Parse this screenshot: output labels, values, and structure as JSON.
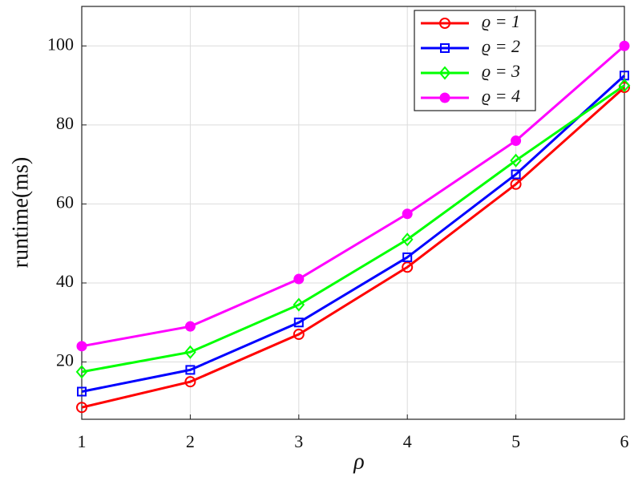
{
  "chart_data": {
    "type": "line",
    "x_label": "ρ",
    "y_label": "runtime(ms)",
    "x": [
      1,
      2,
      3,
      4,
      5,
      6
    ],
    "xlim": [
      1,
      6
    ],
    "xticks": [
      1,
      2,
      3,
      4,
      5,
      6
    ],
    "ylim": [
      5.5,
      110
    ],
    "yticks": [
      20,
      40,
      60,
      80,
      100
    ],
    "grid": true,
    "legend": "upper right",
    "series": [
      {
        "name": "ϱ = 1",
        "color": "#ff0000",
        "marker": "circle",
        "values": [
          8.5,
          15,
          27,
          44,
          65,
          89.5
        ]
      },
      {
        "name": "ϱ = 2",
        "color": "#0000ff",
        "marker": "square",
        "values": [
          12.5,
          18,
          30,
          46.5,
          67.5,
          92.5
        ]
      },
      {
        "name": "ϱ = 3",
        "color": "#00ff00",
        "marker": "diamond",
        "values": [
          17.5,
          22.5,
          34.5,
          51,
          71,
          90
        ]
      },
      {
        "name": "ϱ = 4",
        "color": "#ff00ff",
        "marker": "filled-circle",
        "values": [
          24,
          29,
          41,
          57.5,
          76,
          100
        ]
      }
    ]
  }
}
